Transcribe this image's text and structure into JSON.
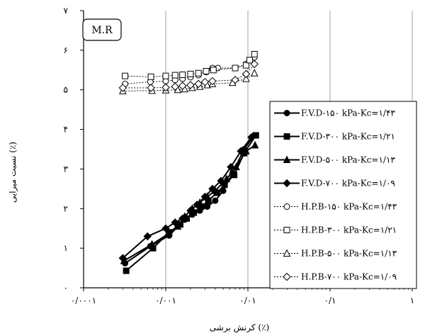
{
  "chart_data": {
    "type": "line",
    "tag": "M.R",
    "xlabel": "کرنش برشی (٪)",
    "ylabel": "نسبت میرایی (٪)",
    "x_scale": "log",
    "xlim": [
      0.0001,
      1
    ],
    "ylim": [
      0,
      7
    ],
    "x_ticks": [
      0.0001,
      0.001,
      0.01,
      0.1,
      1
    ],
    "x_tick_labels": [
      "۰/۰۰۰۱",
      "۰/۰۰۱",
      "۰/۰۱",
      "۰/۱",
      "۱"
    ],
    "y_ticks": [
      0,
      1,
      2,
      3,
      4,
      5,
      6,
      7
    ],
    "y_tick_labels": [
      "۰",
      "۱",
      "۲",
      "۳",
      "۴",
      "۵",
      "۶",
      "۷"
    ],
    "grid": "vertical",
    "legend_position": "right",
    "series": [
      {
        "name": "F.V.D-۱۵۰ kPa-Kc=۱/۴۳",
        "color": "#000000",
        "marker": "circle",
        "filled": true,
        "dashed": false,
        "x": [
          0.00032,
          0.00065,
          0.0011,
          0.0014,
          0.0017,
          0.0021,
          0.0026,
          0.0032,
          0.004,
          0.005,
          0.0065,
          0.009,
          0.012
        ],
        "y": [
          0.62,
          1.05,
          1.32,
          1.55,
          1.72,
          1.85,
          1.95,
          2.05,
          2.2,
          2.45,
          2.9,
          3.5,
          3.85
        ]
      },
      {
        "name": "F.V.D-۳۰۰ kPa-Kc=۱/۲۱",
        "color": "#000000",
        "marker": "square",
        "filled": true,
        "dashed": false,
        "x": [
          0.00033,
          0.0007,
          0.0011,
          0.0015,
          0.0018,
          0.0022,
          0.0027,
          0.0033,
          0.0042,
          0.0052,
          0.0068,
          0.009,
          0.0125
        ],
        "y": [
          0.43,
          1.0,
          1.4,
          1.6,
          1.75,
          1.9,
          2.05,
          2.2,
          2.4,
          2.6,
          2.85,
          3.4,
          3.85
        ]
      },
      {
        "name": "F.V.D-۵۰۰ kPa-Kc=۱/۱۳",
        "color": "#000000",
        "marker": "triangle",
        "filled": true,
        "dashed": false,
        "x": [
          0.00031,
          0.00068,
          0.00105,
          0.0014,
          0.0017,
          0.0021,
          0.0026,
          0.0032,
          0.004,
          0.0055,
          0.0072,
          0.0095,
          0.0122
        ],
        "y": [
          0.68,
          1.1,
          1.35,
          1.55,
          1.8,
          2.0,
          2.15,
          2.3,
          2.45,
          2.75,
          3.05,
          3.45,
          3.6
        ]
      },
      {
        "name": "F.V.D-۷۰۰ kPa-Kc=۱/۰۹",
        "color": "#000000",
        "marker": "diamond",
        "filled": true,
        "dashed": false,
        "x": [
          0.0003,
          0.0006,
          0.001,
          0.0013,
          0.0016,
          0.002,
          0.0024,
          0.003,
          0.0037,
          0.0047,
          0.0062,
          0.0082,
          0.011
        ],
        "y": [
          0.75,
          1.3,
          1.5,
          1.65,
          1.75,
          1.95,
          2.1,
          2.3,
          2.5,
          2.7,
          3.05,
          3.45,
          3.8
        ]
      },
      {
        "name": "H.P.B-۱۵۰ kPa-Kc=۱/۴۳",
        "color": "#000000",
        "marker": "circle",
        "filled": false,
        "dashed": true,
        "x": [
          0.00032,
          0.00065,
          0.001,
          0.0013,
          0.0016,
          0.002,
          0.0025,
          0.0031,
          0.0037,
          0.0043,
          0.007,
          0.0095,
          0.012
        ],
        "y": [
          5.15,
          5.2,
          5.22,
          5.25,
          5.28,
          5.32,
          5.37,
          5.45,
          5.55,
          5.55,
          5.55,
          5.65,
          5.82
        ]
      },
      {
        "name": "H.P.B-۳۰۰ kPa-Kc=۱/۲۱",
        "color": "#000000",
        "marker": "square",
        "filled": false,
        "dashed": true,
        "x": [
          0.00032,
          0.00066,
          0.001,
          0.0013,
          0.0016,
          0.002,
          0.0025,
          0.0031,
          0.0038,
          0.007,
          0.0095,
          0.0105,
          0.012
        ],
        "y": [
          5.35,
          5.33,
          5.35,
          5.37,
          5.38,
          5.4,
          5.42,
          5.47,
          5.5,
          5.55,
          5.62,
          5.75,
          5.9
        ]
      },
      {
        "name": "H.P.B-۵۰۰ kPa-Kc=۱/۱۳",
        "color": "#000000",
        "marker": "triangle",
        "filled": false,
        "dashed": true,
        "x": [
          0.0003,
          0.00068,
          0.001,
          0.0014,
          0.0017,
          0.0021,
          0.0026,
          0.0032,
          0.0037,
          0.0065,
          0.0095,
          0.012
        ],
        "y": [
          4.97,
          4.98,
          4.99,
          5.0,
          5.02,
          5.05,
          5.08,
          5.12,
          5.15,
          5.18,
          5.28,
          5.42
        ]
      },
      {
        "name": "H.P.B-۷۰۰ kPa-Kc=۱/۰۹",
        "color": "#000000",
        "marker": "diamond",
        "filled": false,
        "dashed": true,
        "x": [
          0.0003,
          0.00066,
          0.001,
          0.0013,
          0.0016,
          0.002,
          0.0025,
          0.003,
          0.0037,
          0.007,
          0.0095,
          0.012
        ],
        "y": [
          5.05,
          5.05,
          5.06,
          5.08,
          5.1,
          5.12,
          5.15,
          5.2,
          5.22,
          5.25,
          5.4,
          5.65
        ]
      }
    ]
  }
}
